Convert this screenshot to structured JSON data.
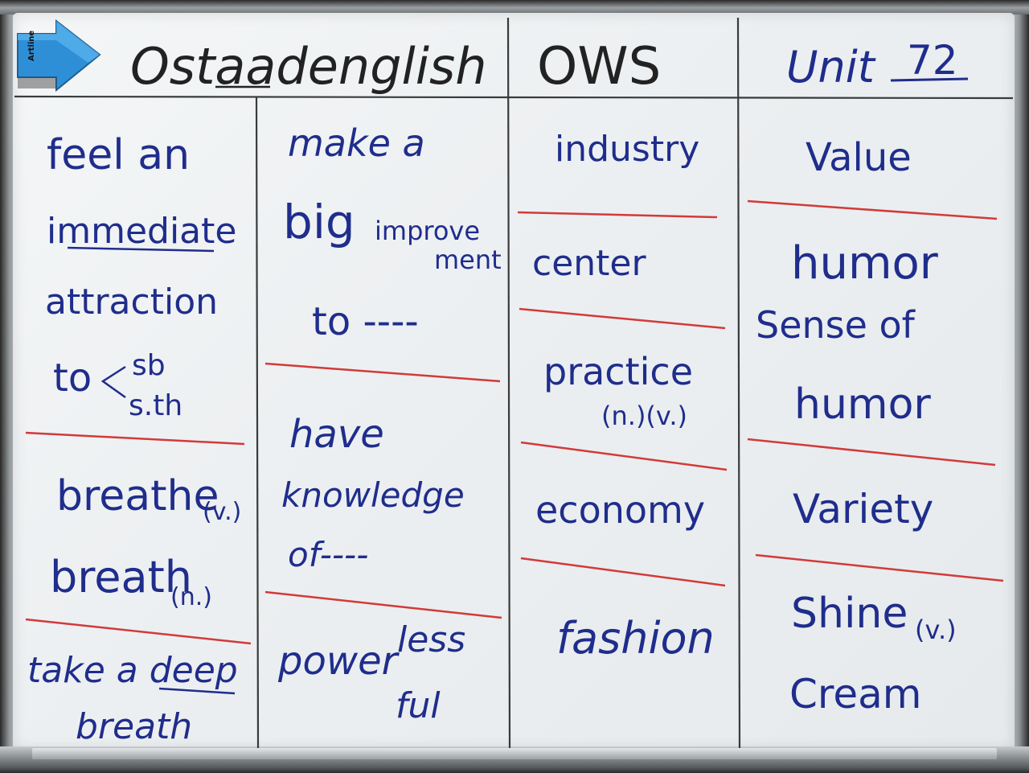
{
  "header": {
    "brand": "Ostaadenglish",
    "code": "OWS",
    "unit_label": "Unit",
    "unit_number": "72"
  },
  "eraser": {
    "label": "Artline"
  },
  "columns": [
    {
      "lines": [
        "feel an",
        "immediate",
        "attraction",
        "to",
        "sb",
        "s.th",
        "breathe",
        "(v.)",
        "breath",
        "(n.)",
        "take a deep",
        "breath"
      ]
    },
    {
      "lines": [
        "make a",
        "big",
        "improve",
        "ment",
        "to ----",
        "have",
        "knowledge",
        "of----",
        "power",
        "less",
        "ful"
      ]
    },
    {
      "lines": [
        "industry",
        "center",
        "practice",
        "(n.)(v.)",
        "economy",
        "fashion"
      ]
    },
    {
      "lines": [
        "Value",
        "humor",
        "Sense of",
        "humor",
        "Variety",
        "Shine",
        "(v.)",
        "Cream"
      ]
    }
  ],
  "colors": {
    "ink_blue": "#1f2d8c",
    "ink_black": "#222222",
    "divider_red": "#d23a3a",
    "board": "#eef1f3"
  }
}
